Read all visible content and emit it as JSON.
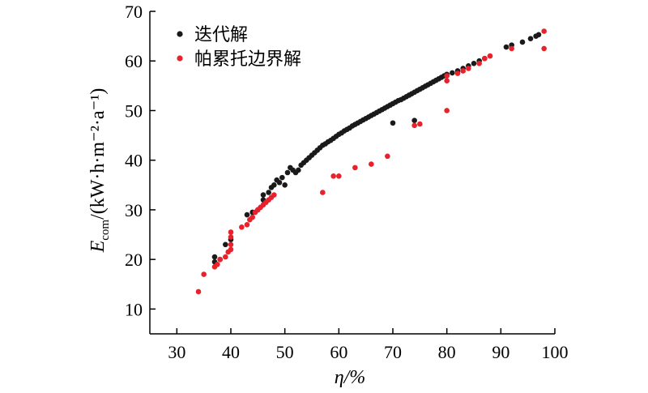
{
  "chart_data": {
    "type": "scatter",
    "xlabel": "η/%",
    "ylabel_main": "E",
    "ylabel_sub": "com",
    "ylabel_rest": "/(kW·h·m⁻²·a⁻¹)",
    "xlim": [
      25,
      100
    ],
    "ylim": [
      5,
      70
    ],
    "x_ticks": [
      30,
      40,
      50,
      60,
      70,
      80,
      90,
      100
    ],
    "y_ticks": [
      10,
      20,
      30,
      40,
      50,
      60,
      70
    ],
    "legend_position": "top-left",
    "series": [
      {
        "name": "迭代解",
        "color": "#1a1a1a",
        "points": [
          [
            37,
            19.5
          ],
          [
            37,
            20.5
          ],
          [
            38,
            20
          ],
          [
            39,
            23
          ],
          [
            40,
            24
          ],
          [
            43,
            29
          ],
          [
            44,
            29.5
          ],
          [
            45,
            30
          ],
          [
            46,
            32
          ],
          [
            46,
            33
          ],
          [
            47,
            33.5
          ],
          [
            47.5,
            34.5
          ],
          [
            48,
            35
          ],
          [
            48.5,
            36
          ],
          [
            49,
            35.5
          ],
          [
            49.5,
            36.5
          ],
          [
            50,
            35
          ],
          [
            50.5,
            37.5
          ],
          [
            51,
            38.5
          ],
          [
            51.5,
            38
          ],
          [
            52,
            37.5
          ],
          [
            52.5,
            38
          ],
          [
            53,
            39
          ],
          [
            53.5,
            39.5
          ],
          [
            54,
            40
          ],
          [
            54.5,
            40.5
          ],
          [
            55,
            41
          ],
          [
            55.5,
            41.5
          ],
          [
            56,
            42
          ],
          [
            56.5,
            42.5
          ],
          [
            57,
            43
          ],
          [
            57.5,
            43.3
          ],
          [
            58,
            43.7
          ],
          [
            58.5,
            44
          ],
          [
            59,
            44.4
          ],
          [
            59.5,
            44.8
          ],
          [
            60,
            45.2
          ],
          [
            60.5,
            45.5
          ],
          [
            61,
            45.9
          ],
          [
            61.5,
            46.2
          ],
          [
            62,
            46.5
          ],
          [
            62.5,
            46.9
          ],
          [
            63,
            47.2
          ],
          [
            63.5,
            47.5
          ],
          [
            64,
            47.8
          ],
          [
            64.5,
            48.1
          ],
          [
            65,
            48.4
          ],
          [
            65.5,
            48.7
          ],
          [
            66,
            49
          ],
          [
            66.5,
            49.3
          ],
          [
            67,
            49.6
          ],
          [
            67.5,
            49.9
          ],
          [
            68,
            50.2
          ],
          [
            68.5,
            50.5
          ],
          [
            69,
            50.8
          ],
          [
            69.5,
            51.1
          ],
          [
            70,
            51.4
          ],
          [
            70.5,
            51.7
          ],
          [
            71,
            52
          ],
          [
            71.5,
            52.2
          ],
          [
            72,
            52.5
          ],
          [
            72.5,
            52.8
          ],
          [
            73,
            53.1
          ],
          [
            73.5,
            53.4
          ],
          [
            74,
            53.7
          ],
          [
            74.5,
            54
          ],
          [
            75,
            54.3
          ],
          [
            75.5,
            54.6
          ],
          [
            76,
            54.9
          ],
          [
            76.5,
            55.2
          ],
          [
            77,
            55.5
          ],
          [
            77.5,
            55.8
          ],
          [
            78,
            56.1
          ],
          [
            78.5,
            56.4
          ],
          [
            79,
            56.7
          ],
          [
            79.5,
            57
          ],
          [
            80,
            57.3
          ],
          [
            81,
            57.6
          ],
          [
            82,
            58
          ],
          [
            83,
            58.5
          ],
          [
            84,
            59
          ],
          [
            85,
            59.5
          ],
          [
            86,
            60
          ],
          [
            87,
            60.5
          ],
          [
            91,
            62.8
          ],
          [
            92,
            63.2
          ],
          [
            94,
            63.8
          ],
          [
            95.5,
            64.5
          ],
          [
            96.5,
            65
          ],
          [
            97,
            65.3
          ],
          [
            70,
            47.5
          ],
          [
            74,
            48
          ]
        ]
      },
      {
        "name": "帕累托边界解",
        "color": "#e8222c",
        "points": [
          [
            34,
            13.5
          ],
          [
            35,
            17
          ],
          [
            37,
            18.5
          ],
          [
            37.5,
            19
          ],
          [
            38,
            20
          ],
          [
            39,
            20.5
          ],
          [
            39.5,
            21.5
          ],
          [
            40,
            22
          ],
          [
            40,
            23
          ],
          [
            40,
            24.5
          ],
          [
            40,
            25.5
          ],
          [
            42,
            26.5
          ],
          [
            43,
            27
          ],
          [
            43.5,
            28
          ],
          [
            44,
            28.5
          ],
          [
            44.5,
            29.5
          ],
          [
            45,
            30
          ],
          [
            45.5,
            30.5
          ],
          [
            46,
            31
          ],
          [
            46.5,
            31.5
          ],
          [
            47,
            32
          ],
          [
            47.5,
            32.5
          ],
          [
            48,
            33
          ],
          [
            57,
            33.5
          ],
          [
            59,
            36.8
          ],
          [
            60,
            36.8
          ],
          [
            63,
            38.5
          ],
          [
            66,
            39.2
          ],
          [
            69,
            40.8
          ],
          [
            74,
            47
          ],
          [
            75,
            47.3
          ],
          [
            80,
            50
          ],
          [
            80,
            56
          ],
          [
            80,
            57
          ],
          [
            82,
            57.5
          ],
          [
            83,
            58
          ],
          [
            84,
            58.5
          ],
          [
            86,
            59.5
          ],
          [
            87,
            60.5
          ],
          [
            88,
            61
          ],
          [
            92,
            62.5
          ],
          [
            98,
            62.5
          ],
          [
            98,
            66
          ]
        ]
      }
    ]
  }
}
